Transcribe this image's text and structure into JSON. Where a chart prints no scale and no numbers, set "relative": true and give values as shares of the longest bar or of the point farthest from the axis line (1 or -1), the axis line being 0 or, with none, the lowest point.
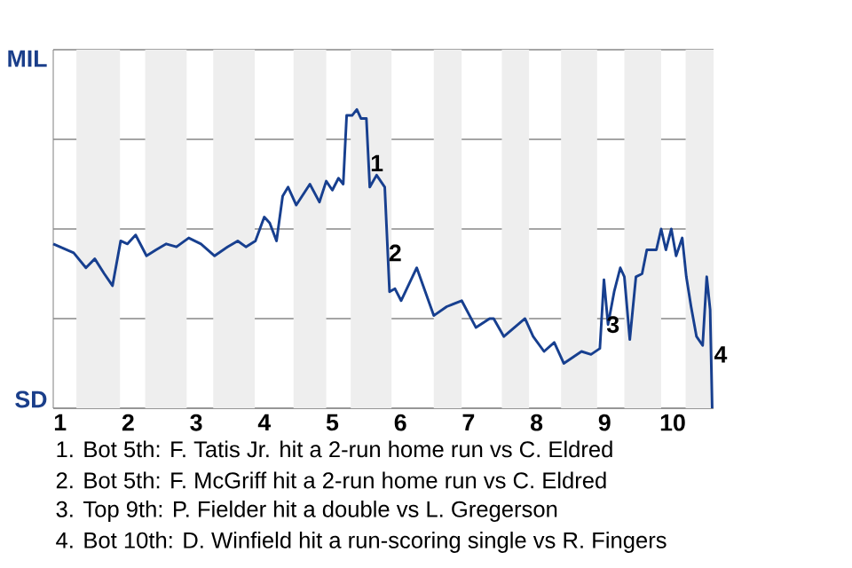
{
  "chart_data": {
    "type": "line",
    "relative": true,
    "x": [
      0.9,
      1.2,
      1.38,
      1.51,
      1.65,
      1.77,
      1.89,
      1.99,
      2.11,
      2.27,
      2.41,
      2.56,
      2.71,
      2.89,
      3.07,
      3.27,
      3.46,
      3.61,
      3.73,
      3.87,
      4.0,
      4.08,
      4.18,
      4.27,
      4.35,
      4.47,
      4.67,
      4.81,
      4.91,
      5.0,
      5.09,
      5.16,
      5.21,
      5.29,
      5.36,
      5.42,
      5.5,
      5.55,
      5.65,
      5.77,
      5.84,
      5.92,
      6.01,
      6.24,
      6.49,
      6.68,
      6.9,
      7.11,
      7.31,
      7.37,
      7.52,
      7.83,
      7.95,
      8.11,
      8.26,
      8.4,
      8.66,
      8.8,
      8.93,
      8.99,
      9.05,
      9.14,
      9.23,
      9.29,
      9.37,
      9.46,
      9.55,
      9.62,
      9.76,
      9.83,
      9.9,
      9.98,
      10.05,
      10.14,
      10.2,
      10.27,
      10.35,
      10.44,
      10.5,
      10.55,
      10.58
    ],
    "series": [
      {
        "color": "#173f8f",
        "values": [
          0.55,
          0.52,
          0.47,
          0.5,
          0.45,
          0.41,
          0.56,
          0.55,
          0.58,
          0.51,
          0.53,
          0.55,
          0.54,
          0.57,
          0.55,
          0.51,
          0.54,
          0.56,
          0.54,
          0.56,
          0.64,
          0.62,
          0.56,
          0.71,
          0.74,
          0.68,
          0.75,
          0.69,
          0.76,
          0.73,
          0.77,
          0.75,
          0.98,
          0.98,
          1,
          0.97,
          0.97,
          0.74,
          0.78,
          0.74,
          0.39,
          0.4,
          0.36,
          0.47,
          0.31,
          0.34,
          0.36,
          0.27,
          0.3,
          0.3,
          0.24,
          0.3,
          0.24,
          0.19,
          0.22,
          0.15,
          0.19,
          0.18,
          0.2,
          0.43,
          0.28,
          0.39,
          0.47,
          0.44,
          0.23,
          0.44,
          0.45,
          0.53,
          0.53,
          0.6,
          0.53,
          0.6,
          0.51,
          0.57,
          0.44,
          0.34,
          0.24,
          0.21,
          0.44,
          0.33,
          0
        ]
      }
    ],
    "xlim": [
      0.9,
      10.6
    ],
    "xticks": [
      1,
      2,
      3,
      4,
      5,
      6,
      7,
      8,
      9,
      10
    ],
    "grid": "y",
    "bands": [
      {
        "axis": "x",
        "from": 1.24,
        "to": 1.88,
        "color": "#eeeeee"
      },
      {
        "axis": "x",
        "from": 2.25,
        "to": 2.86,
        "color": "#eeeeee"
      },
      {
        "axis": "x",
        "from": 3.25,
        "to": 3.86,
        "color": "#eeeeee"
      },
      {
        "axis": "x",
        "from": 4.43,
        "to": 4.91,
        "color": "#eeeeee"
      },
      {
        "axis": "x",
        "from": 5.27,
        "to": 5.87,
        "color": "#eeeeee"
      },
      {
        "axis": "x",
        "from": 6.49,
        "to": 6.9,
        "color": "#eeeeee"
      },
      {
        "axis": "x",
        "from": 7.49,
        "to": 7.89,
        "color": "#eeeeee"
      },
      {
        "axis": "x",
        "from": 8.36,
        "to": 8.89,
        "color": "#eeeeee"
      },
      {
        "axis": "x",
        "from": 9.29,
        "to": 9.83,
        "color": "#eeeeee"
      },
      {
        "axis": "x",
        "from": 10.19,
        "to": 10.6,
        "color": "#eeeeee"
      }
    ],
    "annotations": [
      {
        "text": "1",
        "x": 5.55,
        "y": 0.82
      },
      {
        "text": "2",
        "x": 5.82,
        "y": 0.52
      },
      {
        "text": "3",
        "x": 9.02,
        "y": 0.28
      },
      {
        "text": "4",
        "x": 10.6,
        "y": 0.18
      },
      "MIL",
      "SD",
      "1. Bot 5th: F. Tatis Jr. hit a 2-run home run vs C. Eldred",
      "2. Bot 5th: F. McGriff hit a 2-run home run vs C. Eldred",
      "3. Top 9th: P. Fielder hit a double vs L. Gregerson",
      "4. Bot 10th: D. Winfield hit a run-scoring single vs R. Fingers"
    ]
  }
}
